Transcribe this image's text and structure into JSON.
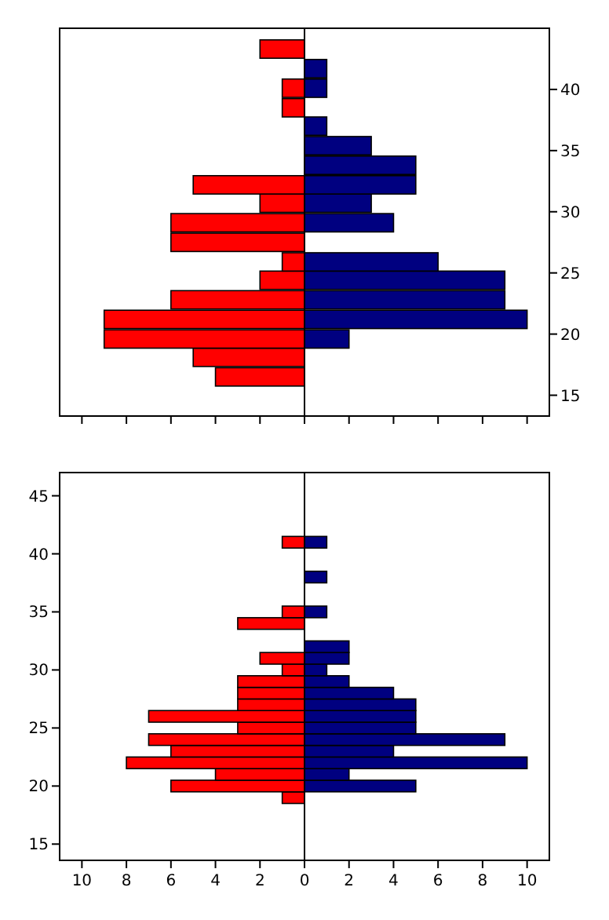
{
  "chart_data": [
    {
      "type": "bar",
      "orientation": "horizontal",
      "x": [
        16.5,
        18.1,
        19.6,
        21.2,
        22.8,
        24.4,
        25.9,
        27.5,
        29.1,
        30.7,
        32.2,
        33.8,
        35.4,
        37.0,
        38.5,
        40.1,
        41.7,
        43.3
      ],
      "series": [
        {
          "color": "#ff0000",
          "values": [
            -4,
            -5,
            -9,
            -9,
            -6,
            -2,
            -1,
            -6,
            -6,
            -2,
            -5,
            0,
            0,
            0,
            -1,
            -1,
            0,
            -2
          ]
        },
        {
          "color": "#000080",
          "values": [
            0,
            0,
            2,
            10,
            9,
            9,
            6,
            0,
            4,
            3,
            5,
            5,
            3,
            1,
            0,
            1,
            1,
            0
          ]
        }
      ],
      "stacked": true,
      "xlim": [
        -11,
        11
      ],
      "xticks": [
        {
          "value": -10,
          "label": null
        },
        {
          "value": -8,
          "label": null
        },
        {
          "value": -6,
          "label": null
        },
        {
          "value": -4,
          "label": null
        },
        {
          "value": -2,
          "label": null
        },
        {
          "value": 0,
          "label": null
        },
        {
          "value": 2,
          "label": null
        },
        {
          "value": 4,
          "label": null
        },
        {
          "value": 6,
          "label": null
        },
        {
          "value": 8,
          "label": null
        },
        {
          "value": 10,
          "label": null
        }
      ],
      "ylim": [
        13.3,
        45
      ],
      "yticks": [
        15,
        20,
        25,
        30,
        35,
        40
      ],
      "tick_labels": "y",
      "ref_lines": [
        {
          "axis": "x",
          "value": 0,
          "color": "#000000"
        }
      ]
    },
    {
      "type": "bar",
      "orientation": "horizontal",
      "x": [
        19,
        20,
        21,
        22,
        23,
        24,
        25,
        26,
        27,
        28,
        29,
        30,
        31,
        32,
        33,
        34,
        35,
        36,
        37,
        38,
        39,
        40,
        41
      ],
      "series": [
        {
          "color": "#ff0000",
          "values": [
            -1,
            -6,
            -4,
            -8,
            -6,
            -7,
            -3,
            -7,
            -3,
            -3,
            -3,
            -1,
            -2,
            0,
            0,
            -3,
            -1,
            0,
            0,
            0,
            0,
            0,
            -1
          ]
        },
        {
          "color": "#000080",
          "values": [
            0,
            5,
            2,
            10,
            4,
            9,
            5,
            5,
            5,
            4,
            2,
            1,
            2,
            2,
            0,
            0,
            1,
            0,
            0,
            1,
            0,
            0,
            1
          ]
        }
      ],
      "stacked": true,
      "xlim": [
        -11,
        11
      ],
      "xticks": [
        {
          "value": -10,
          "label": "10"
        },
        {
          "value": -8,
          "label": "8"
        },
        {
          "value": -6,
          "label": "6"
        },
        {
          "value": -4,
          "label": "4"
        },
        {
          "value": -2,
          "label": "2"
        },
        0,
        2,
        4,
        6,
        8,
        10
      ],
      "ylim": [
        13.6,
        47
      ],
      "yticks": [
        15,
        20,
        25,
        30,
        35,
        40,
        45
      ],
      "ref_lines": [
        {
          "axis": "x",
          "value": 0,
          "color": "#000000"
        }
      ]
    }
  ]
}
